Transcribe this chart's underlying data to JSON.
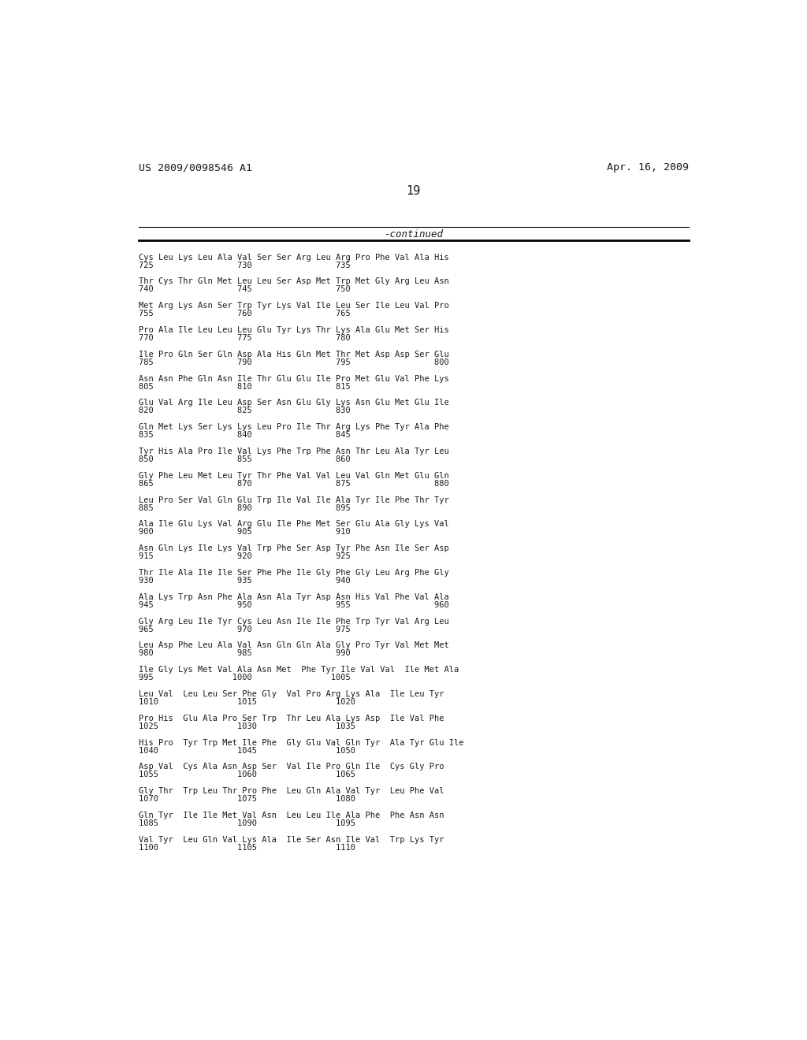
{
  "header_left": "US 2009/0098546 A1",
  "header_right": "Apr. 16, 2009",
  "page_number": "19",
  "continued_label": "-continued",
  "background_color": "#ffffff",
  "text_color": "#1a1a1a",
  "seq_blocks": [
    {
      "seq": "Cys Leu Lys Leu Ala Val Ser Ser Arg Leu Arg Pro Phe Val Ala His",
      "nums": "725                 730                 735"
    },
    {
      "seq": "Thr Cys Thr Gln Met Leu Leu Ser Asp Met Trp Met Gly Arg Leu Asn",
      "nums": "740                 745                 750"
    },
    {
      "seq": "Met Arg Lys Asn Ser Trp Tyr Lys Val Ile Leu Ser Ile Leu Val Pro",
      "nums": "755                 760                 765"
    },
    {
      "seq": "Pro Ala Ile Leu Leu Leu Glu Tyr Lys Thr Lys Ala Glu Met Ser His",
      "nums": "770                 775                 780"
    },
    {
      "seq": "Ile Pro Gln Ser Gln Asp Ala His Gln Met Thr Met Asp Asp Ser Glu",
      "nums": "785                 790                 795                 800"
    },
    {
      "seq": "Asn Asn Phe Gln Asn Ile Thr Glu Glu Ile Pro Met Glu Val Phe Lys",
      "nums": "805                 810                 815"
    },
    {
      "seq": "Glu Val Arg Ile Leu Asp Ser Asn Glu Gly Lys Asn Glu Met Glu Ile",
      "nums": "820                 825                 830"
    },
    {
      "seq": "Gln Met Lys Ser Lys Lys Leu Pro Ile Thr Arg Lys Phe Tyr Ala Phe",
      "nums": "835                 840                 845"
    },
    {
      "seq": "Tyr His Ala Pro Ile Val Lys Phe Trp Phe Asn Thr Leu Ala Tyr Leu",
      "nums": "850                 855                 860"
    },
    {
      "seq": "Gly Phe Leu Met Leu Tyr Thr Phe Val Val Leu Val Gln Met Glu Gln",
      "nums": "865                 870                 875                 880"
    },
    {
      "seq": "Leu Pro Ser Val Gln Glu Trp Ile Val Ile Ala Tyr Ile Phe Thr Tyr",
      "nums": "885                 890                 895"
    },
    {
      "seq": "Ala Ile Glu Lys Val Arg Glu Ile Phe Met Ser Glu Ala Gly Lys Val",
      "nums": "900                 905                 910"
    },
    {
      "seq": "Asn Gln Lys Ile Lys Val Trp Phe Ser Asp Tyr Phe Asn Ile Ser Asp",
      "nums": "915                 920                 925"
    },
    {
      "seq": "Thr Ile Ala Ile Ile Ser Phe Phe Ile Gly Phe Gly Leu Arg Phe Gly",
      "nums": "930                 935                 940"
    },
    {
      "seq": "Ala Lys Trp Asn Phe Ala Asn Ala Tyr Asp Asn His Val Phe Val Ala",
      "nums": "945                 950                 955                 960"
    },
    {
      "seq": "Gly Arg Leu Ile Tyr Cys Leu Asn Ile Ile Phe Trp Tyr Val Arg Leu",
      "nums": "965                 970                 975"
    },
    {
      "seq": "Leu Asp Phe Leu Ala Val Asn Gln Gln Ala Gly Pro Tyr Val Met Met",
      "nums": "980                 985                 990"
    },
    {
      "seq": "Ile Gly Lys Met Val Ala Asn Met  Phe Tyr Ile Val Val  Ile Met Ala",
      "nums": "995                1000                1005"
    },
    {
      "seq": "Leu Val  Leu Leu Ser Phe Gly  Val Pro Arg Lys Ala  Ile Leu Tyr",
      "nums": "1010                1015                1020"
    },
    {
      "seq": "Pro His  Glu Ala Pro Ser Trp  Thr Leu Ala Lys Asp  Ile Val Phe",
      "nums": "1025                1030                1035"
    },
    {
      "seq": "His Pro  Tyr Trp Met Ile Phe  Gly Glu Val Gln Tyr  Ala Tyr Glu Ile",
      "nums": "1040                1045                1050"
    },
    {
      "seq": "Asp Val  Cys Ala Asn Asp Ser  Val Ile Pro Gln Ile  Cys Gly Pro",
      "nums": "1055                1060                1065"
    },
    {
      "seq": "Gly Thr  Trp Leu Thr Pro Phe  Leu Gln Ala Val Tyr  Leu Phe Val",
      "nums": "1070                1075                1080"
    },
    {
      "seq": "Gln Tyr  Ile Ile Met Val Asn  Leu Leu Ile Ala Phe  Phe Asn Asn",
      "nums": "1085                1090                1095"
    },
    {
      "seq": "Val Tyr  Leu Gln Val Lys Ala  Ile Ser Asn Ile Val  Trp Lys Tyr",
      "nums": "1100                1105                1110"
    }
  ]
}
